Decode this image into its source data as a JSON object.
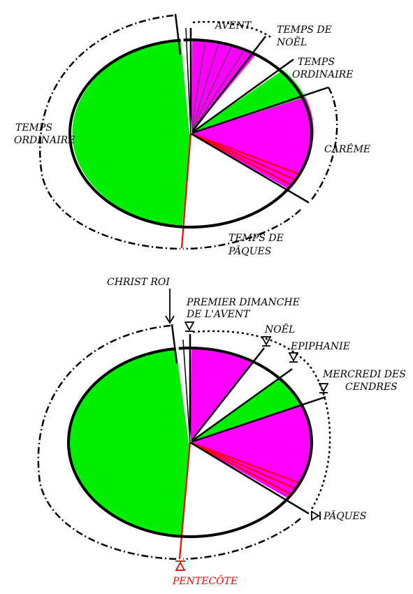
{
  "colors": {
    "violet": "#ff00ff",
    "green": "#00ee00",
    "white": "#ffffff",
    "red": "#ff0000",
    "black": "#000000"
  },
  "top_diagram": {
    "labels": {
      "avent": "AVENT",
      "temps_de_noel_1": "TEMPS DE",
      "temps_de_noel_2": "NOËL",
      "temps_ordinaire_right_1": "TEMPS",
      "temps_ordinaire_right_2": "ORDINAIRE",
      "careme": "CARÊME",
      "temps_de_paques_1": "TEMPS DE",
      "temps_de_paques_2": "PÂQUES",
      "temps_ordinaire_left_1": "TEMPS",
      "temps_ordinaire_left_2": "ORDINAIRE"
    }
  },
  "bottom_diagram": {
    "labels": {
      "christ_roi": "CHRIST ROI",
      "premier_dimanche_1": "PREMIER DIMANCHE",
      "premier_dimanche_2": "DE L'AVENT",
      "noel": "NOËL",
      "epiphanie": "EPIPHANIE",
      "mercredi_1": "MERCREDI DES",
      "mercredi_2": "CENDRES",
      "paques": "PÂQUES",
      "pentecote": "PENTECÔTE"
    }
  }
}
